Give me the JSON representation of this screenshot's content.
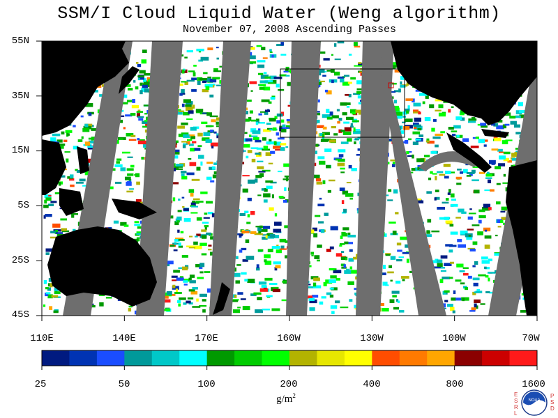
{
  "title": "SSM/I Cloud Liquid Water (Weng algorithm)",
  "subtitle": "November 07, 2008  Ascending Passes",
  "lat_labels": [
    "55N",
    "35N",
    "15N",
    "5S",
    "25S",
    "45S"
  ],
  "lon_labels": [
    "110E",
    "140E",
    "170E",
    "160W",
    "130W",
    "100W",
    "70W"
  ],
  "colorbar": {
    "tick_labels": [
      "25",
      "50",
      "100",
      "200",
      "400",
      "800",
      "1600"
    ],
    "units": "g/m",
    "units_exp": "2",
    "colors": [
      "#001a80",
      "#0033b3",
      "#1a4dff",
      "#00999a",
      "#00c8c8",
      "#00ffff",
      "#009900",
      "#00cc00",
      "#00ff00",
      "#b3b300",
      "#e6e600",
      "#ffff00",
      "#ff4d00",
      "#ff7a00",
      "#ffa600",
      "#8b0000",
      "#cc0000",
      "#ff1a1a"
    ]
  },
  "map": {
    "land_color": "#000000",
    "gap_color": "#6e6e6e",
    "ocean_color": "#ffffff",
    "region_box_color": "#000000"
  },
  "logo": {
    "left_letters": "ESRL",
    "right_letters": "PSD",
    "badge_text": "NOAA"
  }
}
